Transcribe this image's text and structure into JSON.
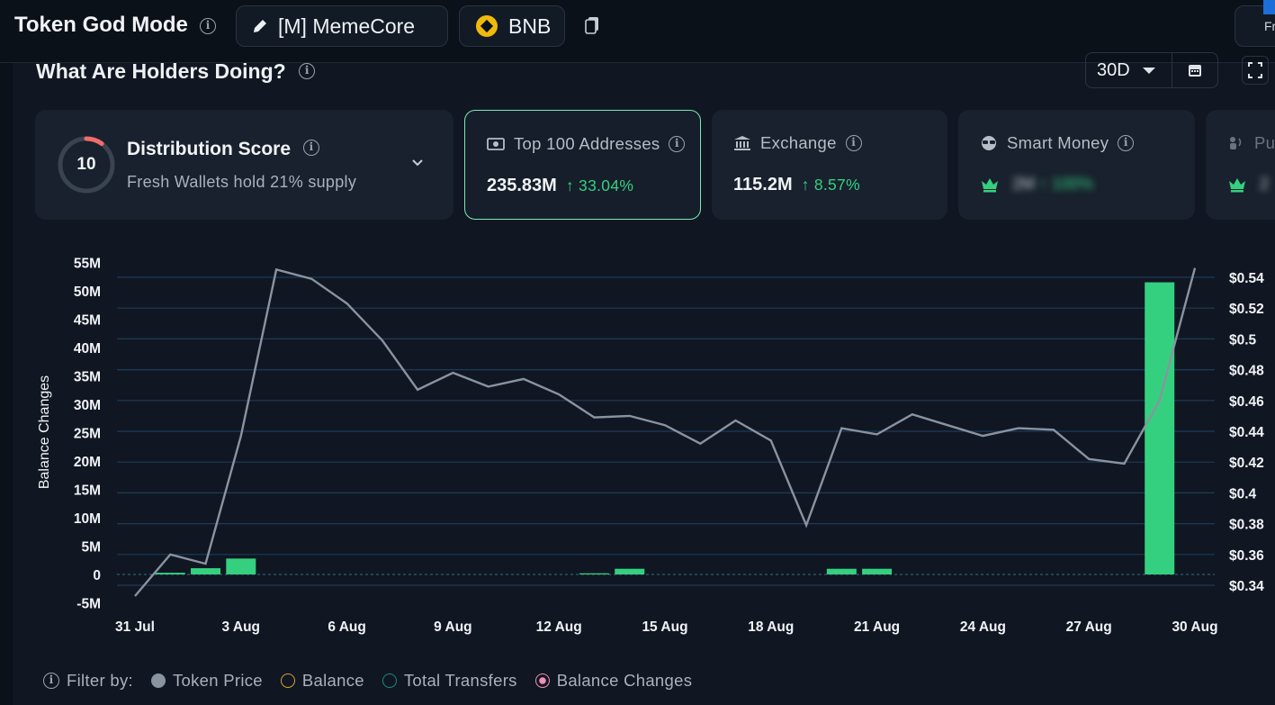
{
  "header": {
    "title": "Token God Mode",
    "token_label": "[M] MemeCore",
    "chain_label": "BNB",
    "right_stub_text": "Fr"
  },
  "section": {
    "title": "What Are Holders Doing?",
    "range_label": "30D"
  },
  "cards": {
    "distribution": {
      "score": "10",
      "score_fraction": 0.1,
      "title": "Distribution Score",
      "subtitle": "Fresh Wallets hold 21% supply"
    },
    "top100": {
      "label": "Top 100 Addresses",
      "value": "235.83M",
      "change": "↑ 33.04%"
    },
    "exchange": {
      "label": "Exchange",
      "value": "115.2M",
      "change": "↑ 8.57%"
    },
    "smart_money": {
      "label": "Smart Money",
      "value": "2M",
      "change": "↑ 100%"
    },
    "public": {
      "label": "Pu",
      "value": "2"
    }
  },
  "colors": {
    "bar": "#35d07f",
    "line": "#8a93a0",
    "accent_up": "#35d07f",
    "score_ring": "#f26b6b"
  },
  "chart_data": {
    "type": "bar+line",
    "ylabel": "Balance Changes",
    "y_left_range": [
      -5,
      55
    ],
    "y_left_ticks": [
      "55M",
      "50M",
      "45M",
      "40M",
      "35M",
      "30M",
      "25M",
      "20M",
      "15M",
      "10M",
      "5M",
      "0",
      "-5M"
    ],
    "y_right_range": [
      0.33,
      0.55
    ],
    "y_right_ticks": [
      "$0.54",
      "$0.52",
      "$0.5",
      "$0.48",
      "$0.46",
      "$0.44",
      "$0.42",
      "$0.4",
      "$0.38",
      "$0.36",
      "$0.34"
    ],
    "x_ticks": [
      "31 Jul",
      "3 Aug",
      "6 Aug",
      "9 Aug",
      "12 Aug",
      "15 Aug",
      "18 Aug",
      "21 Aug",
      "24 Aug",
      "27 Aug",
      "30 Aug"
    ],
    "series": [
      {
        "name": "Balance Changes",
        "unit": "M",
        "values": [
          0,
          0.3,
          1.1,
          2.8,
          0,
          0,
          0,
          0,
          0,
          0,
          0,
          0,
          0,
          0.2,
          1.0,
          0,
          0,
          0,
          0,
          0,
          1.0,
          1.0,
          0,
          0,
          0,
          0,
          0,
          0,
          0,
          51.5,
          0
        ]
      },
      {
        "name": "Token Price",
        "unit": "$",
        "values": [
          0.333,
          0.36,
          0.354,
          0.437,
          0.545,
          0.539,
          0.523,
          0.499,
          0.467,
          0.478,
          0.469,
          0.474,
          0.464,
          0.449,
          0.45,
          0.444,
          0.432,
          0.447,
          0.434,
          0.379,
          0.442,
          0.438,
          0.451,
          0.444,
          0.437,
          0.442,
          0.441,
          0.422,
          0.419,
          0.46,
          0.546
        ]
      }
    ]
  },
  "filter": {
    "label": "Filter by:",
    "items": [
      {
        "label": "Token Price",
        "color": "#8a93a0"
      },
      {
        "label": "Balance",
        "color": "#d7a23a"
      },
      {
        "label": "Total Transfers",
        "color": "#1e8a7a"
      },
      {
        "label": "Balance Changes",
        "color": "#f28fb8"
      }
    ]
  }
}
